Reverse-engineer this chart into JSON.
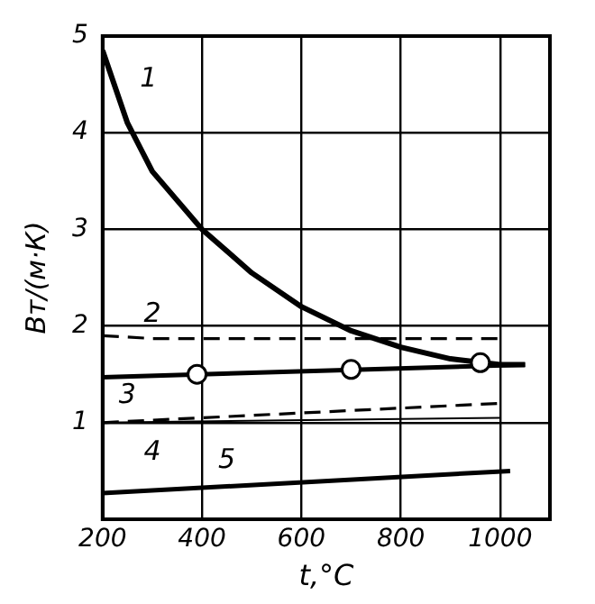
{
  "chart_data": {
    "type": "line",
    "xlabel": "t,°C",
    "ylabel": "Вт/(м·К)",
    "xlim": [
      200,
      1100
    ],
    "xticks": [
      200,
      400,
      600,
      800,
      1000
    ],
    "ylim": [
      0,
      5
    ],
    "yticks": [
      1,
      2,
      3,
      4,
      5
    ],
    "grid": true,
    "legend": false,
    "series": [
      {
        "name": "1",
        "color": "#000000",
        "line_style": "solid",
        "x": [
          200,
          250,
          300,
          400,
          500,
          600,
          700,
          800,
          900,
          1000,
          1050
        ],
        "values": [
          4.85,
          4.1,
          3.6,
          3.0,
          2.55,
          2.2,
          1.95,
          1.78,
          1.66,
          1.6,
          1.6
        ]
      },
      {
        "name": "2",
        "color": "#000000",
        "line_style": "dashed",
        "x": [
          200,
          300,
          1000
        ],
        "values": [
          1.9,
          1.87,
          1.87
        ]
      },
      {
        "name": "3",
        "color": "#000000",
        "line_style": "solid",
        "x": [
          200,
          1050
        ],
        "values": [
          1.47,
          1.6
        ]
      },
      {
        "type": "scatter",
        "marker": "circle",
        "color": "#000000",
        "x": [
          390,
          700,
          960
        ],
        "values": [
          1.5,
          1.55,
          1.62
        ]
      },
      {
        "name": "4",
        "color": "#000000",
        "line_style": "dashed",
        "x": [
          200,
          1000
        ],
        "values": [
          1.0,
          1.2
        ]
      },
      {
        "color": "#000000",
        "line_style": "solid",
        "x": [
          200,
          1000
        ],
        "values": [
          1.0,
          1.05
        ]
      },
      {
        "name": "5",
        "color": "#000000",
        "line_style": "solid",
        "x": [
          200,
          1020
        ],
        "values": [
          0.27,
          0.5
        ]
      }
    ]
  }
}
